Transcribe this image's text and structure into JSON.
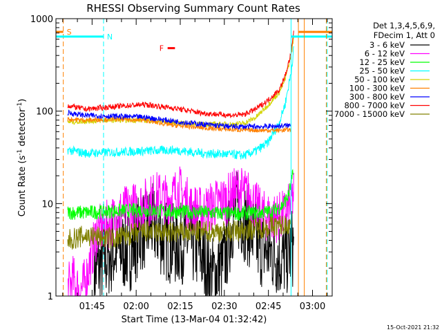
{
  "chart_data": {
    "type": "line",
    "title": "RHESSI Observing Summary Count Rates",
    "xlabel": "Start Time (13-Mar-04 01:32:42)",
    "ylabel_main": "Count Rate (s",
    "ylabel_sup1": "-1",
    "ylabel_mid": " detector",
    "ylabel_sup2": "-1",
    "ylabel_end": ")",
    "yscale": "log",
    "ylim": [
      1,
      1000
    ],
    "xlim_minutes": [
      0,
      94
    ],
    "x_unit": "minutes after 01:32:42",
    "y_ticks": [
      {
        "value": 1,
        "label": "1"
      },
      {
        "value": 10,
        "label": "10"
      },
      {
        "value": 100,
        "label": "100"
      },
      {
        "value": 1000,
        "label": "1000"
      }
    ],
    "x_ticks": [
      {
        "minute": 12.3,
        "label": "01:45"
      },
      {
        "minute": 27.3,
        "label": "02:00"
      },
      {
        "minute": 42.3,
        "label": "02:15"
      },
      {
        "minute": 57.3,
        "label": "02:30"
      },
      {
        "minute": 72.3,
        "label": "02:45"
      },
      {
        "minute": 87.3,
        "label": "03:00"
      }
    ],
    "legend_header": [
      "Det 1,3,4,5,6,9,",
      "FDecim 1, Att 0"
    ],
    "series": [
      {
        "name": "3 - 6 keV",
        "color": "#000000",
        "x": [
          13,
          17,
          21,
          25,
          29,
          33,
          37,
          41,
          45,
          49,
          53,
          57,
          61,
          65,
          69,
          73,
          77,
          79.5,
          81
        ],
        "y": [
          1.8,
          2.5,
          3.2,
          3.0,
          5,
          6,
          4,
          3.5,
          4,
          3,
          1.6,
          2.2,
          9,
          6,
          3.5,
          3,
          2.5,
          3,
          3.5
        ]
      },
      {
        "name": "6 - 12 keV",
        "color": "#ff00ff",
        "x": [
          4,
          6,
          8,
          10,
          14,
          18,
          22,
          26,
          30,
          34,
          38,
          42,
          46,
          50,
          54,
          58,
          62,
          66,
          70,
          74,
          78,
          80,
          81
        ],
        "y": [
          1.2,
          1.5,
          1.1,
          1.4,
          5,
          6,
          8,
          9,
          10,
          12,
          11,
          14,
          9,
          8,
          10,
          11,
          14,
          12,
          7.5,
          7,
          7.5,
          10,
          13
        ]
      },
      {
        "name": "12 - 25 keV",
        "color": "#00ff00",
        "x": [
          4,
          10,
          20,
          30,
          40,
          50,
          60,
          70,
          74,
          77,
          79,
          80,
          80.8
        ],
        "y": [
          8,
          8,
          8.3,
          8.5,
          8.2,
          8.0,
          7.8,
          8,
          8.3,
          9.5,
          12,
          16,
          22
        ]
      },
      {
        "name": "25 - 50 keV",
        "color": "#00ffff",
        "x": [
          4,
          10,
          20,
          30,
          40,
          50,
          60,
          64,
          68,
          72,
          76,
          78,
          80,
          81
        ],
        "y": [
          38,
          35,
          36,
          37,
          38,
          35,
          34,
          33,
          37,
          45,
          75,
          120,
          260,
          500
        ]
      },
      {
        "name": "50 - 100 keV",
        "color": "#d4d400",
        "x": [
          4,
          10,
          20,
          30,
          40,
          50,
          60,
          64,
          68,
          72,
          76,
          78,
          80,
          81
        ],
        "y": [
          76,
          78,
          80,
          80,
          75,
          72,
          72,
          74,
          85,
          115,
          160,
          220,
          400,
          650
        ]
      },
      {
        "name": "100 - 300 keV",
        "color": "#ff8000",
        "x": [
          4,
          10,
          20,
          30,
          40,
          50,
          60,
          70,
          76,
          80
        ],
        "y": [
          82,
          80,
          82,
          80,
          70,
          66,
          63,
          62,
          62,
          63
        ]
      },
      {
        "name": "300 - 800 keV",
        "color": "#0000ff",
        "x": [
          4,
          10,
          20,
          30,
          40,
          50,
          60,
          70,
          76,
          80
        ],
        "y": [
          96,
          90,
          88,
          86,
          78,
          72,
          68,
          68,
          69,
          70
        ]
      },
      {
        "name": "800 - 7000 keV",
        "color": "#ff0000",
        "x": [
          4,
          10,
          20,
          30,
          40,
          50,
          60,
          64,
          68,
          72,
          76,
          78,
          80,
          81
        ],
        "y": [
          115,
          105,
          112,
          118,
          108,
          95,
          90,
          92,
          105,
          130,
          170,
          240,
          420,
          750
        ]
      },
      {
        "name": "7000 - 15000 keV",
        "color": "#808000",
        "x": [
          4,
          10,
          20,
          30,
          40,
          50,
          60,
          70,
          80
        ],
        "y": [
          4,
          4.5,
          4.2,
          5,
          4.8,
          5,
          5,
          5.5,
          6
        ]
      }
    ],
    "markers": [
      {
        "label": "S",
        "color": "#ff8000",
        "x_from": 0,
        "x_to": 2.5,
        "x_line": 2.5,
        "y_value": 720
      },
      {
        "label": "N",
        "color": "#00ffff",
        "x_from": 0,
        "x_to": 16.2,
        "x_line": 16.2,
        "y_value": 640
      },
      {
        "label": "F",
        "color": "#ff0000",
        "x_from": 38,
        "x_to": 40.5,
        "y_value": 480
      }
    ],
    "right_markers": [
      {
        "color": "#ff8000",
        "x_line": 82.5,
        "x_to": 94,
        "y_value": 720
      },
      {
        "color": "#00ffff",
        "x_line": 80,
        "x_to": 94,
        "y_value": 640
      }
    ],
    "vertical_lines": [
      {
        "color": "#ff8000",
        "x": 84.5
      },
      {
        "color": "#ff8000",
        "x": 92
      }
    ],
    "footer_stamp": "15-Oct-2021 21:32"
  }
}
